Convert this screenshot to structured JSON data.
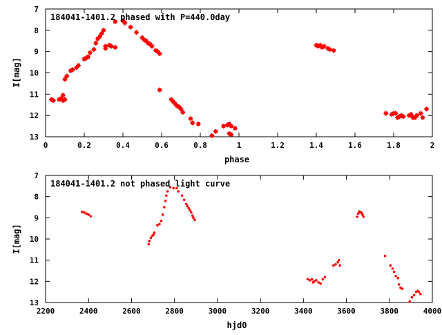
{
  "colors": {
    "series": "#ff0000",
    "axis": "#000000",
    "background": "#ffffff"
  },
  "chart_data": [
    {
      "type": "scatter",
      "title": "184041-1401.2 phased with P=440.0day",
      "xlabel": "phase",
      "ylabel": "I[mag]",
      "xlim": [
        0,
        2
      ],
      "ylim": [
        7,
        13
      ],
      "y_inverted": true,
      "grid": false,
      "x_ticks": [
        "0",
        "0.2",
        "0.4",
        "0.6",
        "0.8",
        "1",
        "1.2",
        "1.4",
        "1.6",
        "1.8",
        "2"
      ],
      "y_ticks": [
        "7",
        "8",
        "9",
        "10",
        "11",
        "12",
        "13"
      ],
      "marker": "plus",
      "points": [
        [
          0.03,
          11.25
        ],
        [
          0.04,
          11.3
        ],
        [
          0.07,
          11.25
        ],
        [
          0.08,
          11.2
        ],
        [
          0.09,
          11.05
        ],
        [
          0.09,
          11.3
        ],
        [
          0.1,
          11.25
        ],
        [
          0.1,
          10.3
        ],
        [
          0.11,
          10.15
        ],
        [
          0.13,
          9.9
        ],
        [
          0.14,
          9.85
        ],
        [
          0.16,
          9.75
        ],
        [
          0.17,
          9.65
        ],
        [
          0.2,
          9.35
        ],
        [
          0.21,
          9.3
        ],
        [
          0.22,
          9.25
        ],
        [
          0.23,
          9.05
        ],
        [
          0.25,
          8.9
        ],
        [
          0.26,
          8.6
        ],
        [
          0.27,
          8.4
        ],
        [
          0.28,
          8.3
        ],
        [
          0.29,
          8.15
        ],
        [
          0.3,
          8.0
        ],
        [
          0.31,
          8.85
        ],
        [
          0.31,
          8.75
        ],
        [
          0.33,
          8.7
        ],
        [
          0.34,
          8.75
        ],
        [
          0.36,
          8.8
        ],
        [
          0.36,
          7.6
        ],
        [
          0.4,
          7.55
        ],
        [
          0.41,
          7.65
        ],
        [
          0.44,
          7.85
        ],
        [
          0.47,
          8.1
        ],
        [
          0.5,
          8.35
        ],
        [
          0.51,
          8.45
        ],
        [
          0.52,
          8.5
        ],
        [
          0.53,
          8.6
        ],
        [
          0.54,
          8.65
        ],
        [
          0.55,
          8.75
        ],
        [
          0.57,
          8.95
        ],
        [
          0.58,
          9.0
        ],
        [
          0.59,
          9.1
        ],
        [
          0.59,
          10.8
        ],
        [
          0.65,
          11.25
        ],
        [
          0.66,
          11.35
        ],
        [
          0.67,
          11.45
        ],
        [
          0.68,
          11.55
        ],
        [
          0.69,
          11.6
        ],
        [
          0.7,
          11.7
        ],
        [
          0.71,
          11.85
        ],
        [
          0.75,
          12.15
        ],
        [
          0.76,
          12.35
        ],
        [
          0.79,
          12.4
        ],
        [
          0.86,
          12.95
        ],
        [
          0.88,
          12.75
        ],
        [
          0.92,
          12.5
        ],
        [
          0.94,
          12.45
        ],
        [
          0.95,
          12.4
        ],
        [
          0.96,
          12.5
        ],
        [
          0.98,
          12.6
        ],
        [
          0.96,
          12.9
        ],
        [
          0.95,
          12.85
        ],
        [
          1.4,
          8.7
        ],
        [
          1.41,
          8.75
        ],
        [
          1.42,
          8.7
        ],
        [
          1.43,
          8.8
        ],
        [
          1.44,
          8.75
        ],
        [
          1.46,
          8.85
        ],
        [
          1.47,
          8.9
        ],
        [
          1.49,
          8.95
        ],
        [
          1.76,
          11.9
        ],
        [
          1.79,
          11.95
        ],
        [
          1.8,
          11.9
        ],
        [
          1.81,
          11.9
        ],
        [
          1.82,
          12.1
        ],
        [
          1.83,
          12.05
        ],
        [
          1.84,
          12.0
        ],
        [
          1.85,
          12.05
        ],
        [
          1.88,
          12.0
        ],
        [
          1.89,
          11.95
        ],
        [
          1.9,
          12.1
        ],
        [
          1.91,
          12.1
        ],
        [
          1.92,
          12.0
        ],
        [
          1.94,
          11.9
        ],
        [
          1.95,
          12.1
        ],
        [
          1.97,
          11.7
        ]
      ]
    },
    {
      "type": "scatter",
      "title": "184041-1401.2 not phased light curve",
      "xlabel": "hjd0",
      "ylabel": "I[mag]",
      "xlim": [
        2200,
        4000
      ],
      "ylim": [
        7,
        13
      ],
      "y_inverted": true,
      "grid": false,
      "x_ticks": [
        "2200",
        "2400",
        "2600",
        "2800",
        "3000",
        "3200",
        "3400",
        "3600",
        "3800",
        "4000"
      ],
      "y_ticks": [
        "7",
        "8",
        "9",
        "10",
        "11",
        "12",
        "13"
      ],
      "marker": "dot",
      "points": [
        [
          2370,
          8.72
        ],
        [
          2380,
          8.75
        ],
        [
          2390,
          8.8
        ],
        [
          2400,
          8.85
        ],
        [
          2410,
          8.92
        ],
        [
          2680,
          10.25
        ],
        [
          2683,
          10.1
        ],
        [
          2690,
          9.95
        ],
        [
          2697,
          9.85
        ],
        [
          2702,
          9.8
        ],
        [
          2706,
          9.7
        ],
        [
          2720,
          9.35
        ],
        [
          2730,
          9.3
        ],
        [
          2738,
          9.15
        ],
        [
          2745,
          8.85
        ],
        [
          2752,
          8.5
        ],
        [
          2758,
          8.2
        ],
        [
          2762,
          7.95
        ],
        [
          2768,
          7.75
        ],
        [
          2780,
          7.55
        ],
        [
          2795,
          7.6
        ],
        [
          2810,
          7.6
        ],
        [
          2818,
          7.75
        ],
        [
          2835,
          7.95
        ],
        [
          2845,
          8.15
        ],
        [
          2855,
          8.35
        ],
        [
          2860,
          8.45
        ],
        [
          2866,
          8.55
        ],
        [
          2872,
          8.65
        ],
        [
          2878,
          8.75
        ],
        [
          2884,
          8.9
        ],
        [
          2888,
          9.0
        ],
        [
          2894,
          9.1
        ],
        [
          3420,
          11.9
        ],
        [
          3430,
          11.95
        ],
        [
          3440,
          11.9
        ],
        [
          3445,
          12.05
        ],
        [
          3450,
          12.0
        ],
        [
          3460,
          11.95
        ],
        [
          3470,
          12.05
        ],
        [
          3480,
          12.1
        ],
        [
          3490,
          11.9
        ],
        [
          3500,
          11.8
        ],
        [
          3540,
          11.25
        ],
        [
          3550,
          11.2
        ],
        [
          3560,
          11.1
        ],
        [
          3565,
          11.0
        ],
        [
          3570,
          11.25
        ],
        [
          3650,
          8.95
        ],
        [
          3655,
          8.8
        ],
        [
          3660,
          8.7
        ],
        [
          3665,
          8.75
        ],
        [
          3670,
          8.75
        ],
        [
          3675,
          8.85
        ],
        [
          3680,
          8.95
        ],
        [
          3780,
          10.8
        ],
        [
          3805,
          11.25
        ],
        [
          3815,
          11.4
        ],
        [
          3822,
          11.55
        ],
        [
          3830,
          11.75
        ],
        [
          3840,
          11.85
        ],
        [
          3845,
          12.15
        ],
        [
          3852,
          12.3
        ],
        [
          3860,
          12.35
        ],
        [
          3895,
          12.95
        ],
        [
          3905,
          12.75
        ],
        [
          3915,
          12.65
        ],
        [
          3925,
          12.5
        ],
        [
          3932,
          12.45
        ],
        [
          3938,
          12.5
        ],
        [
          3945,
          12.6
        ]
      ]
    }
  ]
}
